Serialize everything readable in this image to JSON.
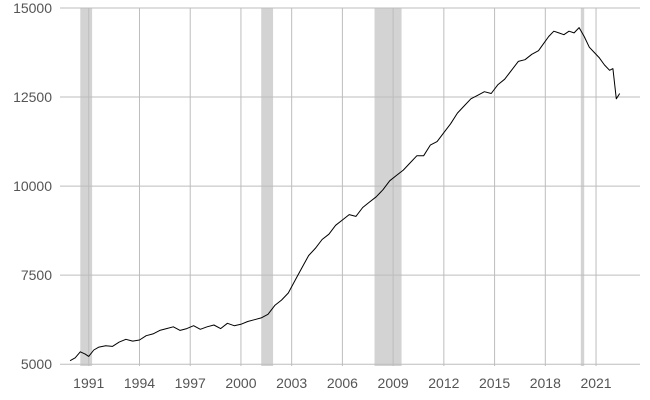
{
  "chart_data": {
    "type": "line",
    "title": "",
    "xlabel": "",
    "ylabel": "",
    "xlim": [
      1989.3,
      2023.6
    ],
    "ylim": [
      4950,
      15000
    ],
    "grid": true,
    "legend": "none",
    "colors": {
      "line": "#000000",
      "grid": "#bdbdbd",
      "shade": "#d3d3d3",
      "tick_text": "#555555"
    },
    "x_ticks": [
      {
        "value": 1991,
        "label": "1991"
      },
      {
        "value": 1994,
        "label": "1994"
      },
      {
        "value": 1997,
        "label": "1997"
      },
      {
        "value": 2000,
        "label": "2000"
      },
      {
        "value": 2003,
        "label": "2003"
      },
      {
        "value": 2006,
        "label": "2006"
      },
      {
        "value": 2009,
        "label": "2009"
      },
      {
        "value": 2012,
        "label": "2012"
      },
      {
        "value": 2015,
        "label": "2015"
      },
      {
        "value": 2018,
        "label": "2018"
      },
      {
        "value": 2021,
        "label": "2021"
      }
    ],
    "y_ticks": [
      {
        "value": 5000,
        "label": "5000"
      },
      {
        "value": 7500,
        "label": "7500"
      },
      {
        "value": 10000,
        "label": "10000"
      },
      {
        "value": 12500,
        "label": "12500"
      },
      {
        "value": 15000,
        "label": "15000"
      }
    ],
    "shaded_periods": [
      {
        "start": 1990.5,
        "end": 1991.2
      },
      {
        "start": 2001.2,
        "end": 2001.9
      },
      {
        "start": 2007.9,
        "end": 2009.5
      },
      {
        "start": 2020.1,
        "end": 2020.3
      }
    ],
    "series": [
      {
        "x": [
          1989.9,
          1990.2,
          1990.5,
          1990.8,
          1991.0,
          1991.3,
          1991.6,
          1992.0,
          1992.4,
          1992.8,
          1993.2,
          1993.6,
          1994.0,
          1994.4,
          1994.8,
          1995.2,
          1995.6,
          1996.0,
          1996.4,
          1996.8,
          1997.2,
          1997.6,
          1998.0,
          1998.4,
          1998.8,
          1999.2,
          1999.6,
          2000.0,
          2000.4,
          2000.8,
          2001.2,
          2001.6,
          2002.0,
          2002.4,
          2002.8,
          2003.2,
          2003.6,
          2004.0,
          2004.4,
          2004.8,
          2005.2,
          2005.6,
          2006.0,
          2006.4,
          2006.8,
          2007.2,
          2007.6,
          2008.0,
          2008.4,
          2008.8,
          2009.2,
          2009.6,
          2010.0,
          2010.4,
          2010.8,
          2011.2,
          2011.6,
          2012.0,
          2012.4,
          2012.8,
          2013.2,
          2013.6,
          2014.0,
          2014.4,
          2014.8,
          2015.2,
          2015.6,
          2016.0,
          2016.4,
          2016.8,
          2017.2,
          2017.6,
          2017.9,
          2018.2,
          2018.5,
          2018.8,
          2019.1,
          2019.4,
          2019.7,
          2020.0,
          2020.3,
          2020.6,
          2020.9,
          2021.2,
          2021.5,
          2021.8,
          2022.0,
          2022.2,
          2022.4
        ],
        "y": [
          5100,
          5180,
          5350,
          5280,
          5220,
          5400,
          5480,
          5520,
          5500,
          5620,
          5700,
          5650,
          5680,
          5800,
          5850,
          5950,
          6000,
          6050,
          5950,
          6000,
          6080,
          5980,
          6050,
          6100,
          6000,
          6150,
          6080,
          6120,
          6200,
          6250,
          6300,
          6400,
          6650,
          6800,
          7000,
          7350,
          7700,
          8050,
          8250,
          8500,
          8650,
          8900,
          9050,
          9200,
          9150,
          9400,
          9550,
          9700,
          9900,
          10150,
          10300,
          10450,
          10650,
          10850,
          10850,
          11150,
          11250,
          11500,
          11750,
          12050,
          12250,
          12450,
          12550,
          12650,
          12600,
          12850,
          13000,
          13250,
          13500,
          13550,
          13700,
          13800,
          14000,
          14200,
          14350,
          14300,
          14250,
          14350,
          14300,
          14450,
          14200,
          13900,
          13750,
          13600,
          13400,
          13250,
          13300,
          12450,
          12600
        ]
      }
    ]
  }
}
